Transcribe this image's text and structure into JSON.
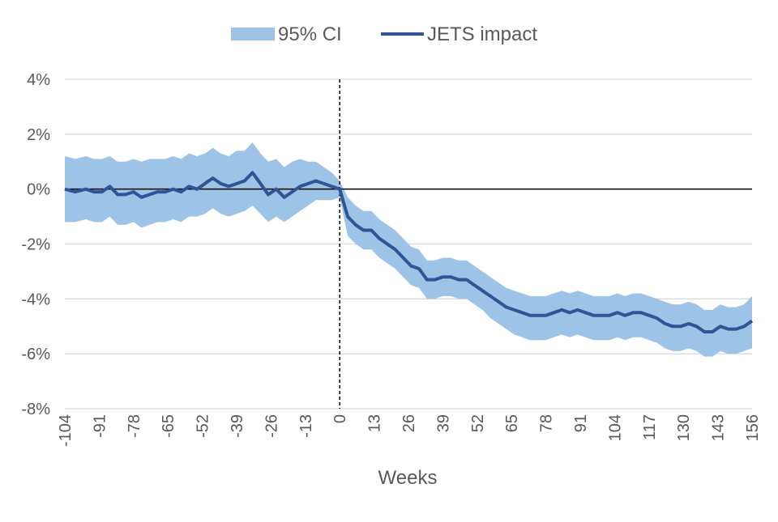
{
  "chart_data": {
    "type": "line",
    "title": "",
    "xlabel": "Weeks",
    "ylabel": "",
    "xlim": [
      -104,
      156
    ],
    "ylim": [
      -8,
      4
    ],
    "x_ticks": [
      -104,
      -91,
      -78,
      -65,
      -52,
      -39,
      -26,
      -13,
      0,
      13,
      26,
      39,
      52,
      65,
      78,
      91,
      104,
      117,
      130,
      143,
      156
    ],
    "x_tick_labels": [
      "-104",
      "-91",
      "-78",
      "-65",
      "-52",
      "-39",
      "-26",
      "-13",
      "0",
      "13",
      "26",
      "39",
      "52",
      "65",
      "78",
      "91",
      "104",
      "117",
      "130",
      "143",
      "156"
    ],
    "y_ticks": [
      -8,
      -6,
      -4,
      -2,
      0,
      2,
      4
    ],
    "y_tick_labels": [
      "-8%",
      "-6%",
      "-4%",
      "-2%",
      "0%",
      "2%",
      "4%"
    ],
    "grid": true,
    "legend_position": "top-center",
    "reference_lines": {
      "horizontal_at_y": 0,
      "vertical_dashed_at_x": 0
    },
    "colors": {
      "ci_band": "#9dc3e6",
      "impact_line": "#2f5597",
      "grid": "#d9d9d9",
      "axis": "#000000",
      "text": "#595959"
    },
    "legend": [
      {
        "name": "95% CI",
        "kind": "area"
      },
      {
        "name": "JETS impact",
        "kind": "line"
      }
    ],
    "series": [
      {
        "name": "JETS impact",
        "x": [
          -104,
          -100,
          -96,
          -93,
          -90,
          -87,
          -84,
          -81,
          -78,
          -75,
          -72,
          -69,
          -66,
          -63,
          -60,
          -57,
          -54,
          -51,
          -48,
          -45,
          -42,
          -39,
          -36,
          -33,
          -30,
          -27,
          -24,
          -21,
          -18,
          -15,
          -12,
          -9,
          -6,
          -3,
          0,
          3,
          6,
          9,
          12,
          15,
          18,
          21,
          24,
          27,
          30,
          33,
          36,
          39,
          42,
          45,
          48,
          51,
          54,
          57,
          60,
          63,
          66,
          69,
          72,
          75,
          78,
          81,
          84,
          87,
          90,
          93,
          96,
          99,
          102,
          105,
          108,
          111,
          114,
          117,
          120,
          123,
          126,
          129,
          132,
          135,
          138,
          141,
          144,
          147,
          150,
          153,
          156
        ],
        "values": [
          0.0,
          -0.1,
          0.0,
          -0.1,
          -0.1,
          0.1,
          -0.2,
          -0.2,
          -0.1,
          -0.3,
          -0.2,
          -0.1,
          -0.1,
          0.0,
          -0.1,
          0.1,
          0.0,
          0.2,
          0.4,
          0.2,
          0.1,
          0.2,
          0.3,
          0.6,
          0.2,
          -0.2,
          0.0,
          -0.3,
          -0.1,
          0.1,
          0.2,
          0.3,
          0.2,
          0.1,
          0.0,
          -1.0,
          -1.3,
          -1.5,
          -1.5,
          -1.8,
          -2.0,
          -2.2,
          -2.5,
          -2.8,
          -2.9,
          -3.3,
          -3.3,
          -3.2,
          -3.2,
          -3.3,
          -3.3,
          -3.5,
          -3.7,
          -3.9,
          -4.1,
          -4.3,
          -4.4,
          -4.5,
          -4.6,
          -4.6,
          -4.6,
          -4.5,
          -4.4,
          -4.5,
          -4.4,
          -4.5,
          -4.6,
          -4.6,
          -4.6,
          -4.5,
          -4.6,
          -4.5,
          -4.5,
          -4.6,
          -4.7,
          -4.9,
          -5.0,
          -5.0,
          -4.9,
          -5.0,
          -5.2,
          -5.2,
          -5.0,
          -5.1,
          -5.1,
          -5.0,
          -4.8
        ]
      },
      {
        "name": "95% CI",
        "x": [
          -104,
          -100,
          -96,
          -93,
          -90,
          -87,
          -84,
          -81,
          -78,
          -75,
          -72,
          -69,
          -66,
          -63,
          -60,
          -57,
          -54,
          -51,
          -48,
          -45,
          -42,
          -39,
          -36,
          -33,
          -30,
          -27,
          -24,
          -21,
          -18,
          -15,
          -12,
          -9,
          -6,
          -3,
          0,
          3,
          6,
          9,
          12,
          15,
          18,
          21,
          24,
          27,
          30,
          33,
          36,
          39,
          42,
          45,
          48,
          51,
          54,
          57,
          60,
          63,
          66,
          69,
          72,
          75,
          78,
          81,
          84,
          87,
          90,
          93,
          96,
          99,
          102,
          105,
          108,
          111,
          114,
          117,
          120,
          123,
          126,
          129,
          132,
          135,
          138,
          141,
          144,
          147,
          150,
          153,
          156
        ],
        "lower": [
          -1.2,
          -1.2,
          -1.1,
          -1.2,
          -1.2,
          -1.0,
          -1.3,
          -1.3,
          -1.2,
          -1.4,
          -1.3,
          -1.2,
          -1.2,
          -1.1,
          -1.2,
          -1.0,
          -1.0,
          -0.9,
          -0.7,
          -0.9,
          -1.0,
          -0.9,
          -0.8,
          -0.6,
          -0.9,
          -1.2,
          -1.0,
          -1.2,
          -1.0,
          -0.8,
          -0.6,
          -0.4,
          -0.4,
          -0.4,
          -0.3,
          -1.7,
          -2.0,
          -2.2,
          -2.2,
          -2.5,
          -2.7,
          -2.9,
          -3.2,
          -3.5,
          -3.6,
          -4.0,
          -4.0,
          -3.9,
          -3.9,
          -4.0,
          -4.0,
          -4.2,
          -4.4,
          -4.7,
          -4.9,
          -5.1,
          -5.3,
          -5.4,
          -5.5,
          -5.5,
          -5.5,
          -5.4,
          -5.3,
          -5.4,
          -5.3,
          -5.4,
          -5.5,
          -5.5,
          -5.5,
          -5.4,
          -5.5,
          -5.4,
          -5.4,
          -5.5,
          -5.6,
          -5.8,
          -5.9,
          -5.9,
          -5.8,
          -5.9,
          -6.1,
          -6.1,
          -5.9,
          -6.0,
          -6.0,
          -5.9,
          -5.8
        ],
        "upper": [
          1.2,
          1.1,
          1.2,
          1.1,
          1.1,
          1.2,
          1.0,
          1.0,
          1.1,
          1.0,
          1.1,
          1.1,
          1.1,
          1.2,
          1.1,
          1.3,
          1.2,
          1.3,
          1.5,
          1.3,
          1.2,
          1.4,
          1.4,
          1.7,
          1.3,
          1.0,
          1.1,
          0.8,
          1.0,
          1.1,
          1.0,
          1.0,
          0.8,
          0.6,
          0.3,
          -0.3,
          -0.6,
          -0.8,
          -0.8,
          -1.1,
          -1.3,
          -1.5,
          -1.8,
          -2.1,
          -2.2,
          -2.6,
          -2.6,
          -2.5,
          -2.5,
          -2.6,
          -2.6,
          -2.8,
          -3.0,
          -3.2,
          -3.4,
          -3.6,
          -3.7,
          -3.8,
          -3.9,
          -3.9,
          -3.9,
          -3.8,
          -3.7,
          -3.8,
          -3.7,
          -3.8,
          -3.9,
          -3.9,
          -3.9,
          -3.8,
          -3.9,
          -3.8,
          -3.8,
          -3.9,
          -4.0,
          -4.1,
          -4.2,
          -4.2,
          -4.1,
          -4.2,
          -4.4,
          -4.4,
          -4.2,
          -4.3,
          -4.3,
          -4.2,
          -3.9
        ]
      }
    ]
  }
}
